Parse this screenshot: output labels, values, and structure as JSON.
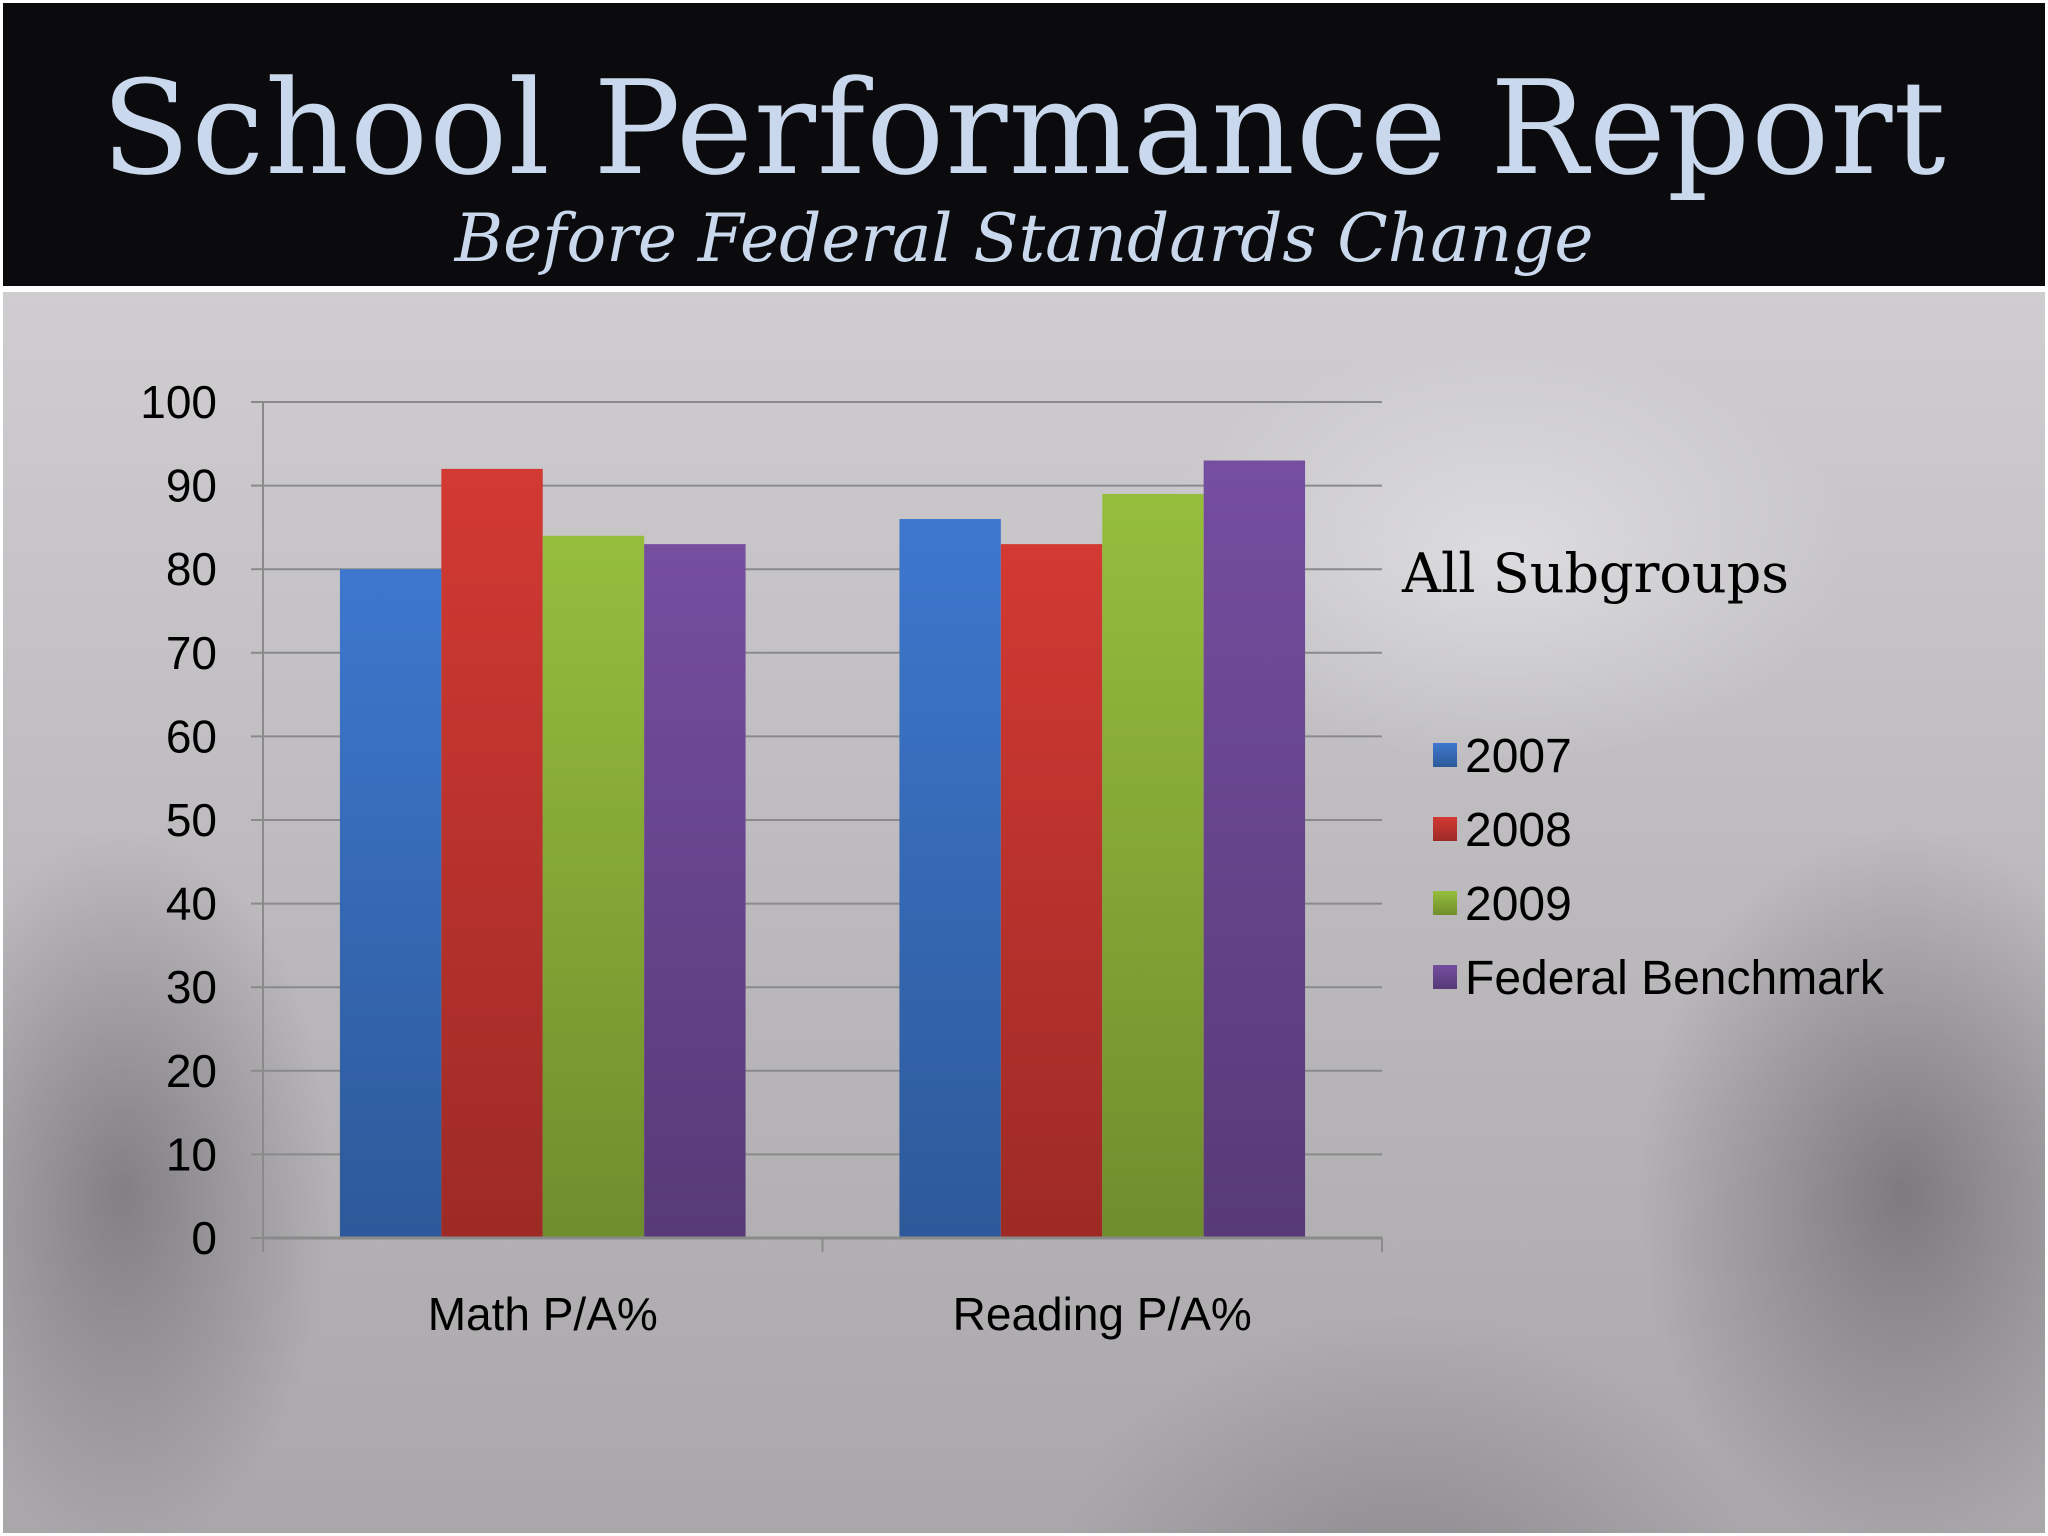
{
  "header": {
    "title": "School Performance Report",
    "subtitle": "Before Federal Standards Change"
  },
  "chart_data": {
    "type": "bar",
    "categories": [
      "Math P/A%",
      "Reading P/A%"
    ],
    "series": [
      {
        "name": "2007",
        "values": [
          80,
          86
        ],
        "color": "#3a72c4"
      },
      {
        "name": "2008",
        "values": [
          92,
          83
        ],
        "color": "#c93631"
      },
      {
        "name": "2009",
        "values": [
          84,
          89
        ],
        "color": "#8fb53a"
      },
      {
        "name": "Federal Benchmark",
        "values": [
          83,
          93
        ],
        "color": "#6f4a98"
      }
    ],
    "ylim": [
      0,
      100
    ],
    "yticks": [
      "0",
      "10",
      "20",
      "30",
      "40",
      "50",
      "60",
      "70",
      "80",
      "90",
      "100"
    ],
    "legend": {
      "title": "All Subgroups",
      "placement": "right"
    },
    "grid": true
  }
}
